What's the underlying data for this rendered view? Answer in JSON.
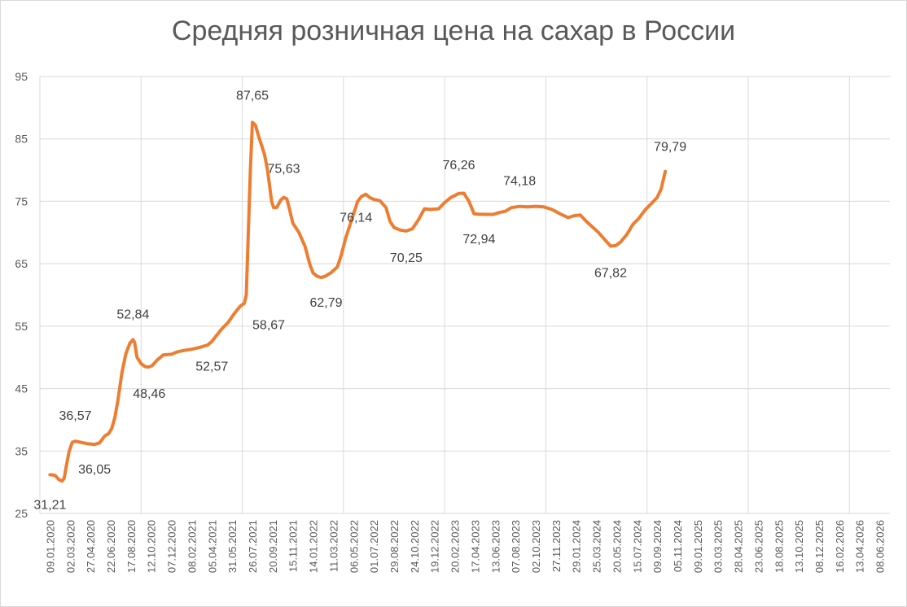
{
  "chart_data": {
    "type": "line",
    "title": "Средняя розничная цена на сахар в России",
    "xlabel": "",
    "ylabel": "",
    "ylim": [
      25,
      95
    ],
    "yticks": [
      25,
      35,
      45,
      55,
      65,
      75,
      85,
      95
    ],
    "grid": true,
    "legend": "none",
    "line_color": "#ED7D31",
    "x_tick_labels": [
      "09.01.2020",
      "02.03.2020",
      "27.04.2020",
      "22.06.2020",
      "17.08.2020",
      "12.10.2020",
      "07.12.2020",
      "08.02.2021",
      "05.04.2021",
      "31.05.2021",
      "26.07.2021",
      "20.09.2021",
      "15.11.2021",
      "14.01.2022",
      "11.03.2022",
      "06.05.2022",
      "01.07.2022",
      "29.08.2022",
      "24.10.2022",
      "19.12.2022",
      "20.02.2023",
      "17.04.2023",
      "13.06.2023",
      "07.08.2023",
      "02.10.2023",
      "27.11.2023",
      "29.01.2024",
      "25.03.2024",
      "20.05.2024",
      "15.07.2024",
      "09.09.2024",
      "05.11.2024",
      "09.01.2025",
      "03.03.2025",
      "28.04.2025",
      "23.06.2025",
      "18.08.2025",
      "13.10.2025",
      "08.12.2025",
      "16.02.2026",
      "13.04.2026",
      "08.06.2026"
    ],
    "series": [
      {
        "values": [
          [
            0,
            31.21
          ],
          [
            0.25,
            31.1
          ],
          [
            0.45,
            30.4
          ],
          [
            0.6,
            30.2
          ],
          [
            0.7,
            30.6
          ],
          [
            0.8,
            32.5
          ],
          [
            0.95,
            35
          ],
          [
            1.1,
            36.4
          ],
          [
            1.25,
            36.57
          ],
          [
            1.5,
            36.4
          ],
          [
            1.8,
            36.2
          ],
          [
            2.2,
            36.05
          ],
          [
            2.45,
            36.3
          ],
          [
            2.7,
            37.4
          ],
          [
            2.9,
            37.8
          ],
          [
            3.05,
            38.6
          ],
          [
            3.2,
            40.3
          ],
          [
            3.35,
            43
          ],
          [
            3.55,
            47.5
          ],
          [
            3.75,
            50.6
          ],
          [
            3.95,
            52.3
          ],
          [
            4.1,
            52.84
          ],
          [
            4.18,
            52.4
          ],
          [
            4.3,
            50
          ],
          [
            4.5,
            49
          ],
          [
            4.7,
            48.5
          ],
          [
            4.9,
            48.46
          ],
          [
            5.05,
            48.7
          ],
          [
            5.3,
            49.6
          ],
          [
            5.6,
            50.4
          ],
          [
            6,
            50.5
          ],
          [
            6.3,
            50.9
          ],
          [
            6.6,
            51.1
          ],
          [
            7,
            51.3
          ],
          [
            7.4,
            51.6
          ],
          [
            7.8,
            52.0
          ],
          [
            8,
            52.57
          ],
          [
            8.2,
            53.4
          ],
          [
            8.5,
            54.6
          ],
          [
            8.8,
            55.6
          ],
          [
            9.1,
            57
          ],
          [
            9.4,
            58.2
          ],
          [
            9.6,
            58.67
          ],
          [
            9.7,
            60
          ],
          [
            9.8,
            70
          ],
          [
            9.9,
            80
          ],
          [
            10.0,
            87.65
          ],
          [
            10.15,
            87.2
          ],
          [
            10.3,
            85.5
          ],
          [
            10.45,
            84
          ],
          [
            10.6,
            82.5
          ],
          [
            10.75,
            80
          ],
          [
            10.85,
            77.5
          ],
          [
            10.95,
            75
          ],
          [
            11.05,
            74
          ],
          [
            11.2,
            74
          ],
          [
            11.4,
            75.2
          ],
          [
            11.55,
            75.63
          ],
          [
            11.7,
            75.4
          ],
          [
            11.85,
            73.5
          ],
          [
            12.0,
            71.5
          ],
          [
            12.3,
            70
          ],
          [
            12.6,
            67.8
          ],
          [
            12.85,
            64.8
          ],
          [
            13.0,
            63.5
          ],
          [
            13.2,
            63
          ],
          [
            13.4,
            62.79
          ],
          [
            13.6,
            63
          ],
          [
            13.9,
            63.6
          ],
          [
            14.2,
            64.5
          ],
          [
            14.4,
            66.5
          ],
          [
            14.6,
            69
          ],
          [
            14.8,
            71
          ],
          [
            15.0,
            73
          ],
          [
            15.2,
            75
          ],
          [
            15.4,
            75.8
          ],
          [
            15.6,
            76.14
          ],
          [
            15.8,
            75.6
          ],
          [
            16.0,
            75.3
          ],
          [
            16.3,
            75.1
          ],
          [
            16.6,
            74
          ],
          [
            16.8,
            71.8
          ],
          [
            17.0,
            70.8
          ],
          [
            17.3,
            70.4
          ],
          [
            17.6,
            70.25
          ],
          [
            17.9,
            70.6
          ],
          [
            18.2,
            72
          ],
          [
            18.5,
            73.8
          ],
          [
            18.8,
            73.7
          ],
          [
            19.2,
            73.8
          ],
          [
            19.5,
            74.8
          ],
          [
            19.8,
            75.6
          ],
          [
            20.2,
            76.26
          ],
          [
            20.45,
            76.3
          ],
          [
            20.7,
            75
          ],
          [
            20.95,
            73
          ],
          [
            21.2,
            72.94
          ],
          [
            21.6,
            72.9
          ],
          [
            21.9,
            72.9
          ],
          [
            22.2,
            73.2
          ],
          [
            22.5,
            73.4
          ],
          [
            22.8,
            74.0
          ],
          [
            23.2,
            74.18
          ],
          [
            23.6,
            74.1
          ],
          [
            24,
            74.2
          ],
          [
            24.4,
            74.1
          ],
          [
            24.8,
            73.7
          ],
          [
            25.2,
            73.0
          ],
          [
            25.6,
            72.4
          ],
          [
            25.9,
            72.7
          ],
          [
            26.2,
            72.8
          ],
          [
            26.5,
            71.8
          ],
          [
            26.8,
            70.9
          ],
          [
            27.1,
            70
          ],
          [
            27.4,
            68.9
          ],
          [
            27.7,
            67.82
          ],
          [
            27.95,
            67.9
          ],
          [
            28.2,
            68.5
          ],
          [
            28.5,
            69.7
          ],
          [
            28.8,
            71.3
          ],
          [
            29.1,
            72.3
          ],
          [
            29.4,
            73.6
          ],
          [
            29.7,
            74.6
          ],
          [
            30.0,
            75.6
          ],
          [
            30.2,
            77
          ],
          [
            30.4,
            79.79
          ]
        ]
      }
    ],
    "data_labels": [
      {
        "x": 0,
        "y": 31.21,
        "text": "31,21"
      },
      {
        "x": 1.25,
        "y": 36.57,
        "text": "36,57"
      },
      {
        "x": 2.2,
        "y": 36.05,
        "text": "36,05"
      },
      {
        "x": 4.1,
        "y": 52.84,
        "text": "52,84"
      },
      {
        "x": 4.9,
        "y": 48.46,
        "text": "48,46"
      },
      {
        "x": 8.0,
        "y": 52.57,
        "text": "52,57"
      },
      {
        "x": 9.6,
        "y": 58.67,
        "text": "58,67"
      },
      {
        "x": 10.0,
        "y": 87.65,
        "text": "87,65"
      },
      {
        "x": 11.55,
        "y": 75.63,
        "text": "75,63"
      },
      {
        "x": 13.4,
        "y": 62.79,
        "text": "62,79"
      },
      {
        "x": 15.6,
        "y": 76.14,
        "text": "76,14"
      },
      {
        "x": 17.6,
        "y": 70.25,
        "text": "70,25"
      },
      {
        "x": 20.2,
        "y": 76.26,
        "text": "76,26"
      },
      {
        "x": 21.2,
        "y": 72.94,
        "text": "72,94"
      },
      {
        "x": 23.2,
        "y": 74.18,
        "text": "74,18"
      },
      {
        "x": 27.7,
        "y": 67.82,
        "text": "67,82"
      },
      {
        "x": 30.4,
        "y": 79.79,
        "text": "79,79"
      }
    ]
  }
}
